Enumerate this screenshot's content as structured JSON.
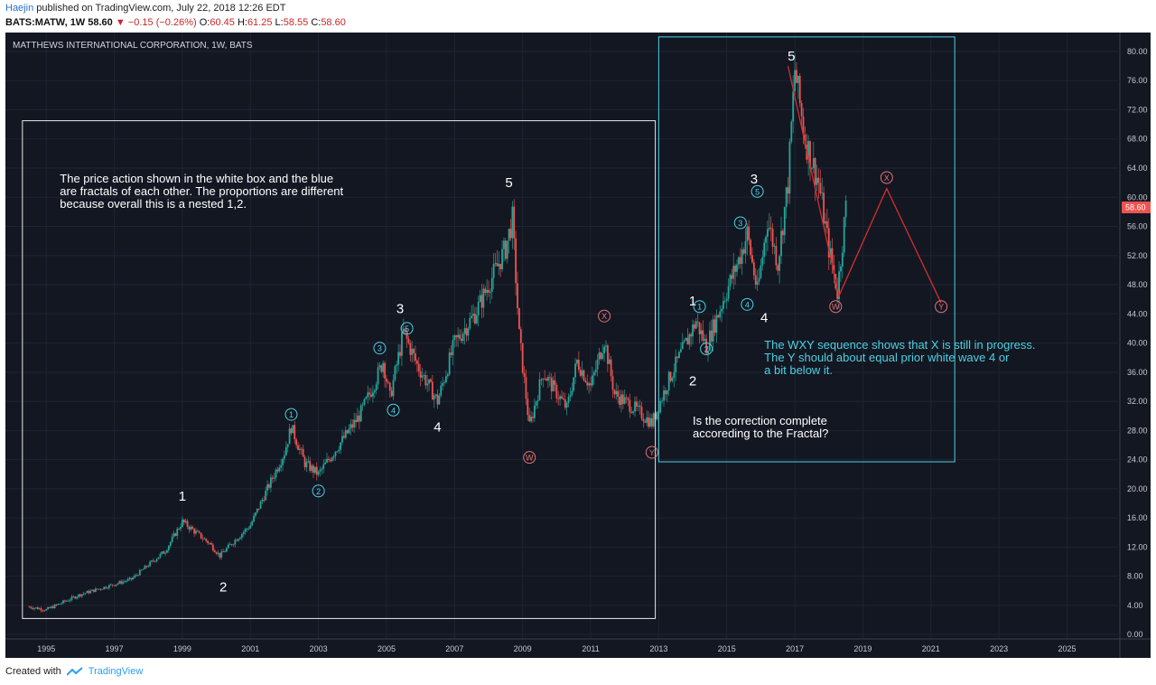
{
  "header": {
    "author": "Haejin",
    "published": "published on TradingView.com, July 22, 2018 12:26 EDT",
    "symbol": "BATS:MATW, 1W",
    "price": "58.60",
    "change_arrow": "▼",
    "change": "−0.15 (−0.26%)",
    "o_label": "O:",
    "o": "60.45",
    "h_label": "H:",
    "h": "61.25",
    "l_label": "L:",
    "l": "58.55",
    "c_label": "C:",
    "c": "58.60"
  },
  "footer": {
    "created_with": "Created with",
    "brand": "TradingView",
    "logo_icon": "tradingview-logo-icon"
  },
  "colors": {
    "background": "#131722",
    "up": "#26a69a",
    "down": "#ef5350",
    "wick": "#b0b6c3",
    "white_box": "#e8e8e8",
    "blue_box": "#4dd0e1",
    "cyan_text": "#4dd0e1",
    "red_label": "#e57373",
    "red_path": "#d32f2f",
    "grid": "#1f2433",
    "axis_text": "#c5c9d3"
  },
  "chart_data": {
    "type": "candlestick",
    "title": "MATTHEWS INTERNATIONAL CORPORATION, 1W, BATS",
    "xlim": [
      1993.8,
      2026.5
    ],
    "ylim": [
      -0.6,
      82.6
    ],
    "x_ticks": [
      1995,
      1997,
      1999,
      2001,
      2003,
      2005,
      2007,
      2009,
      2011,
      2013,
      2015,
      2017,
      2019,
      2021,
      2023,
      2025
    ],
    "y_ticks": [
      "0.00",
      "4.00",
      "8.00",
      "12.00",
      "16.00",
      "20.00",
      "24.00",
      "28.00",
      "32.00",
      "36.00",
      "40.00",
      "44.00",
      "48.00",
      "52.00",
      "56.00",
      "60.00",
      "64.00",
      "68.00",
      "72.00",
      "76.00",
      "80.00"
    ],
    "last_price": "58.60",
    "price_path": [
      [
        1994.5,
        3.8
      ],
      [
        1995.0,
        3.4
      ],
      [
        1996.0,
        5.5
      ],
      [
        1997.5,
        7.6
      ],
      [
        1998.5,
        11.5
      ],
      [
        1999.0,
        15.5
      ],
      [
        1999.8,
        12.5
      ],
      [
        2000.1,
        10.8
      ],
      [
        2000.6,
        13.2
      ],
      [
        2001.0,
        15.0
      ],
      [
        2001.5,
        20.0
      ],
      [
        2002.0,
        25.0
      ],
      [
        2002.2,
        28.5
      ],
      [
        2002.6,
        23.5
      ],
      [
        2003.0,
        22.0
      ],
      [
        2003.6,
        26.0
      ],
      [
        2004.2,
        30.0
      ],
      [
        2004.6,
        34.0
      ],
      [
        2004.9,
        37.5
      ],
      [
        2005.1,
        32.5
      ],
      [
        2005.5,
        41.5
      ],
      [
        2005.9,
        37.0
      ],
      [
        2006.5,
        32.0
      ],
      [
        2007.0,
        40.0
      ],
      [
        2007.6,
        44.0
      ],
      [
        2008.2,
        50.0
      ],
      [
        2008.5,
        53.0
      ],
      [
        2008.7,
        57.0
      ],
      [
        2008.9,
        41.0
      ],
      [
        2009.2,
        28.5
      ],
      [
        2009.6,
        36.0
      ],
      [
        2010.3,
        31.0
      ],
      [
        2010.6,
        37.5
      ],
      [
        2011.0,
        34.0
      ],
      [
        2011.4,
        40.5
      ],
      [
        2011.7,
        33.0
      ],
      [
        2012.3,
        31.0
      ],
      [
        2012.8,
        29.0
      ],
      [
        2013.3,
        35.0
      ],
      [
        2013.8,
        40.0
      ],
      [
        2014.1,
        43.0
      ],
      [
        2014.4,
        39.5
      ],
      [
        2014.9,
        46.0
      ],
      [
        2015.4,
        52.0
      ],
      [
        2015.6,
        55.0
      ],
      [
        2015.9,
        47.0
      ],
      [
        2016.2,
        57.0
      ],
      [
        2016.5,
        51.0
      ],
      [
        2016.8,
        62.0
      ],
      [
        2017.0,
        77.5
      ],
      [
        2017.3,
        68.0
      ],
      [
        2017.7,
        62.0
      ],
      [
        2018.0,
        53.0
      ],
      [
        2018.25,
        47.0
      ],
      [
        2018.5,
        58.6
      ]
    ],
    "boxes": [
      {
        "name": "white-box",
        "x": [
          1994.3,
          2012.9
        ],
        "y": [
          2.2,
          70.5
        ],
        "color": "#e8e8e8"
      },
      {
        "name": "blue-box",
        "x": [
          2013.0,
          2021.7
        ],
        "y": [
          23.7,
          82.0
        ],
        "color": "#4dd0e1"
      }
    ],
    "wave_labels": [
      {
        "text": "1",
        "x": 1999.0,
        "y": 19.0,
        "style": "plain"
      },
      {
        "text": "2",
        "x": 2000.2,
        "y": 6.5,
        "style": "plain"
      },
      {
        "text": "3",
        "x": 2005.4,
        "y": 44.7,
        "style": "plain"
      },
      {
        "text": "4",
        "x": 2006.5,
        "y": 28.5,
        "style": "plain"
      },
      {
        "text": "5",
        "x": 2008.6,
        "y": 62.0,
        "style": "plain"
      },
      {
        "text": "1",
        "x": 2014.0,
        "y": 45.8,
        "style": "plain"
      },
      {
        "text": "2",
        "x": 2014.0,
        "y": 34.8,
        "style": "plain"
      },
      {
        "text": "3",
        "x": 2015.8,
        "y": 62.5,
        "style": "plain"
      },
      {
        "text": "4",
        "x": 2016.1,
        "y": 43.5,
        "style": "plain"
      },
      {
        "text": "5",
        "x": 2016.9,
        "y": 79.4,
        "style": "plain"
      },
      {
        "text": "1",
        "x": 2002.2,
        "y": 30.2,
        "style": "circle"
      },
      {
        "text": "2",
        "x": 2003.0,
        "y": 19.7,
        "style": "circle"
      },
      {
        "text": "3",
        "x": 2004.8,
        "y": 39.3,
        "style": "circle"
      },
      {
        "text": "4",
        "x": 2005.2,
        "y": 30.8,
        "style": "circle"
      },
      {
        "text": "5",
        "x": 2005.6,
        "y": 42.0,
        "style": "circle"
      },
      {
        "text": "1",
        "x": 2014.2,
        "y": 45.0,
        "style": "circle"
      },
      {
        "text": "2",
        "x": 2014.4,
        "y": 39.2,
        "style": "circle"
      },
      {
        "text": "3",
        "x": 2015.4,
        "y": 56.5,
        "style": "circle"
      },
      {
        "text": "4",
        "x": 2015.6,
        "y": 45.3,
        "style": "circle"
      },
      {
        "text": "5",
        "x": 2015.9,
        "y": 60.8,
        "style": "circle"
      },
      {
        "text": "W",
        "x": 2009.2,
        "y": 24.3,
        "style": "circle-red"
      },
      {
        "text": "X",
        "x": 2011.4,
        "y": 43.7,
        "style": "circle-red"
      },
      {
        "text": "Y",
        "x": 2012.8,
        "y": 25.0,
        "style": "circle-red"
      },
      {
        "text": "W",
        "x": 2018.2,
        "y": 45.0,
        "style": "circle-red"
      },
      {
        "text": "X",
        "x": 2019.7,
        "y": 62.7,
        "style": "circle-red"
      },
      {
        "text": "Y",
        "x": 2021.3,
        "y": 45.0,
        "style": "circle-red"
      }
    ],
    "projection_path": [
      [
        2016.8,
        78.0
      ],
      [
        2018.3,
        46.5
      ],
      [
        2019.7,
        61.2
      ],
      [
        2021.3,
        45.5
      ]
    ],
    "annotations": [
      {
        "name": "fractal-note",
        "color": "white",
        "x": 1995.4,
        "y": 62.0,
        "lines": [
          "The price action shown in the white box and the blue",
          "are fractals of each other. The proportions are different",
          "because overall this is a nested 1,2."
        ]
      },
      {
        "name": "correction-question",
        "color": "white",
        "x": 2014.0,
        "y": 28.8,
        "lines": [
          "Is the correction complete",
          "accoreding to the Fractal?"
        ]
      },
      {
        "name": "wxy-note",
        "color": "cyan",
        "x": 2016.1,
        "y": 39.2,
        "lines": [
          "The WXY sequence shows that X is still in progress.",
          "The Y should about equal prior white wave 4 or",
          "a bit below it."
        ]
      }
    ]
  }
}
